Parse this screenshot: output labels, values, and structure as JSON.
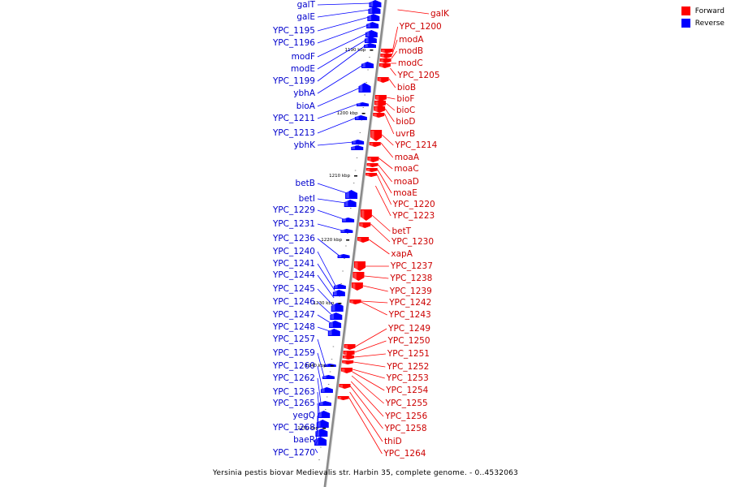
{
  "legend": {
    "forward": {
      "label": "Forward",
      "color": "#ff0000"
    },
    "reverse": {
      "label": "Reverse",
      "color": "#0000ff"
    }
  },
  "caption": "Yersinia pestis biovar Medievalis str. Harbin 35, complete genome. - 0..4532063",
  "kbp_marks": [
    "1190 kbp",
    "1200 kbp",
    "1210 kbp",
    "1220 kbp",
    "1230 kbp",
    "1240 kbp",
    "1250 kbp"
  ],
  "reverse_genes": [
    "galT",
    "galE",
    "YPC_1195",
    "YPC_1196",
    "modF",
    "modE",
    "YPC_1199",
    "ybhA",
    "bioA",
    "YPC_1211",
    "YPC_1213",
    "ybhK",
    "betB",
    "betI",
    "YPC_1229",
    "YPC_1231",
    "YPC_1236",
    "YPC_1240",
    "YPC_1241",
    "YPC_1244",
    "YPC_1245",
    "YPC_1246",
    "YPC_1247",
    "YPC_1248",
    "YPC_1257",
    "YPC_1259",
    "YPC_1260",
    "YPC_1262",
    "YPC_1263",
    "YPC_1265",
    "yegQ",
    "YPC_1268",
    "baeR",
    "YPC_1270"
  ],
  "forward_genes": [
    "galK",
    "YPC_1200",
    "modA",
    "modB",
    "modC",
    "YPC_1205",
    "bioB",
    "bioF",
    "bioC",
    "bioD",
    "uvrB",
    "YPC_1214",
    "moaA",
    "moaC",
    "moaD",
    "moaE",
    "YPC_1220",
    "YPC_1223",
    "betT",
    "YPC_1230",
    "xapA",
    "YPC_1237",
    "YPC_1238",
    "YPC_1239",
    "YPC_1242",
    "YPC_1243",
    "YPC_1249",
    "YPC_1250",
    "YPC_1251",
    "YPC_1252",
    "YPC_1253",
    "YPC_1254",
    "YPC_1255",
    "YPC_1256",
    "YPC_1258",
    "thiD",
    "YPC_1264"
  ]
}
